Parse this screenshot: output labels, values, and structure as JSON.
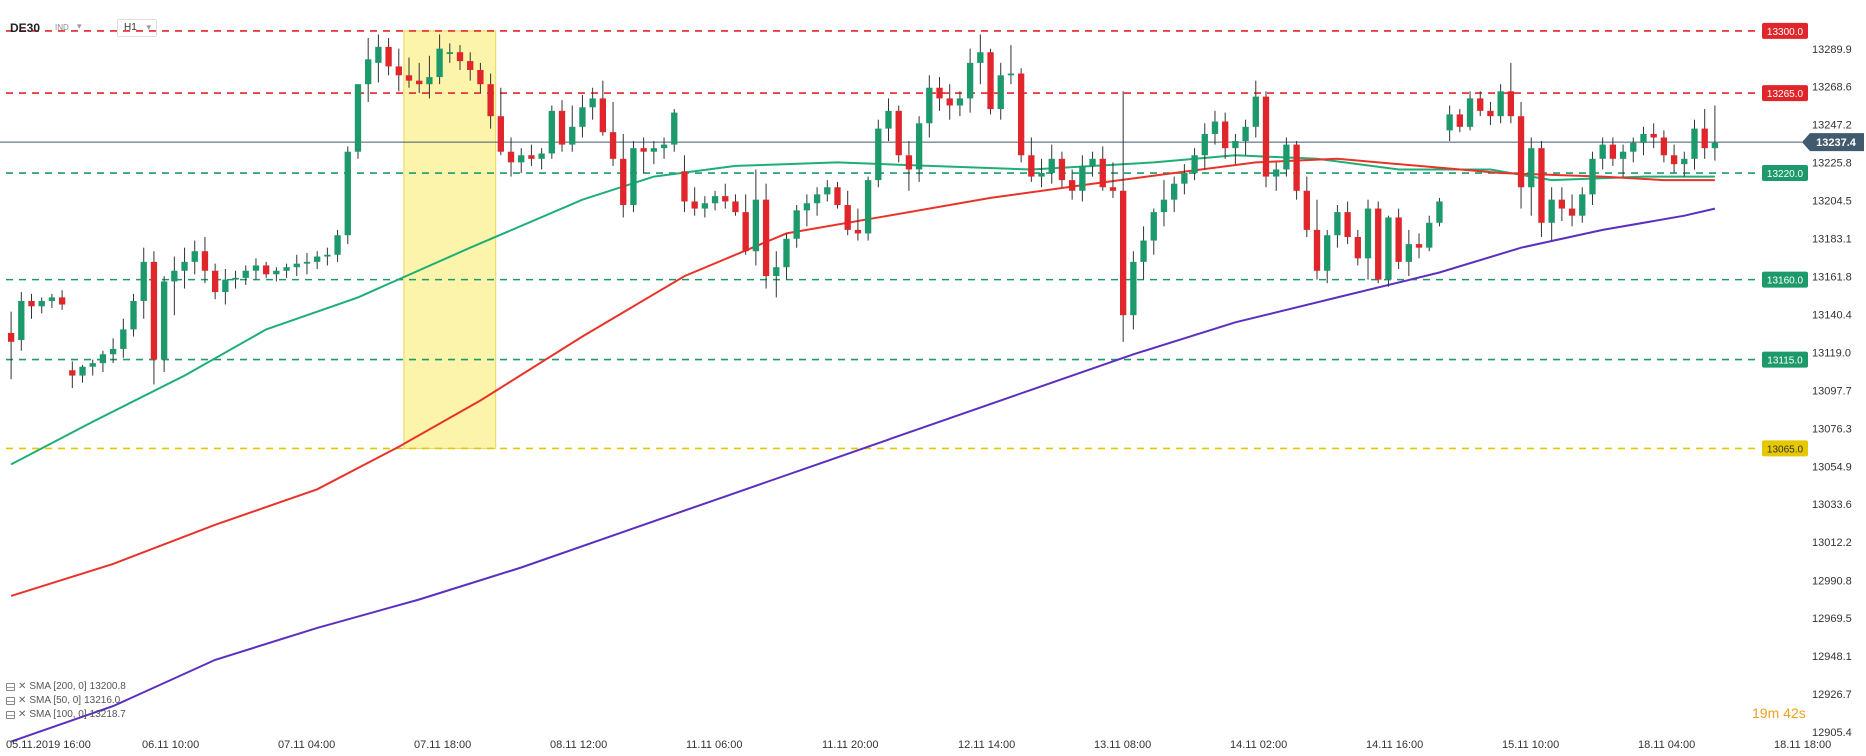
{
  "header": {
    "symbol": "DE30",
    "market": "IND",
    "timeframe": "H1"
  },
  "timer": "19m 42s",
  "indicators": [
    {
      "label": "SMA [200, 0]",
      "value": "13200.8",
      "color": "#5b2fbf"
    },
    {
      "label": "SMA [50, 0]",
      "value": "13216.0",
      "color": "#e8332a"
    },
    {
      "label": "SMA [100, 0]",
      "value": "13218.7",
      "color": "#1fae76"
    }
  ],
  "colors": {
    "bull": "#1c9a6c",
    "bear": "#e0262b",
    "grid": "#eeeeee",
    "axis_text": "#333333",
    "highlight": "#fbf29b"
  },
  "chart_data": {
    "type": "candlestick",
    "instrument": "DE30",
    "timeframe": "H1",
    "ylim": [
      12905.4,
      13300.5
    ],
    "yticks": [
      13289.9,
      13268.6,
      13247.2,
      13225.8,
      13204.5,
      13183.1,
      13161.8,
      13140.4,
      13119.0,
      13097.7,
      13076.3,
      13054.9,
      13033.6,
      13012.2,
      12990.8,
      12969.5,
      12948.1,
      12926.7,
      12905.4
    ],
    "xlabels": [
      "05.11.2019  16:00",
      "06.11  10:00",
      "07.11  04:00",
      "07.11  18:00",
      "08.11  12:00",
      "11.11  06:00",
      "11.11  20:00",
      "12.11  14:00",
      "13.11  08:00",
      "14.11  02:00",
      "14.11  16:00",
      "15.11  10:00",
      "18.11  04:00",
      "18.11  18:00"
    ],
    "current_price": {
      "label": "13237.4",
      "value": 13237.4
    },
    "levels": [
      {
        "value": 13300.0,
        "label": "13300.0",
        "color": "#e0262b"
      },
      {
        "value": 13265.0,
        "label": "13265.0",
        "color": "#e0262b"
      },
      {
        "value": 13220.0,
        "label": "13220.0",
        "color": "#1c9a6c"
      },
      {
        "value": 13160.0,
        "label": "13160.0",
        "color": "#1c9a6c"
      },
      {
        "value": 13115.0,
        "label": "13115.0",
        "color": "#1c9a6c"
      },
      {
        "value": 13065.0,
        "label": "13065.0",
        "color": "#e6c800"
      }
    ],
    "highlight_zone": {
      "from_bar": 39,
      "to_bar": 47,
      "high": 13300.0,
      "low": 13065.0
    },
    "candles": [
      [
        13130,
        13142,
        13104,
        13125
      ],
      [
        13126,
        13153,
        13120,
        13148
      ],
      [
        13148,
        13152,
        13138,
        13145
      ],
      [
        13145,
        13150,
        13141,
        13148
      ],
      [
        13148,
        13152,
        13144,
        13150
      ],
      [
        13150,
        13154,
        13143,
        13146
      ],
      [
        13109,
        13114,
        13099,
        13106
      ],
      [
        13106,
        13112,
        13102,
        13111
      ],
      [
        13111,
        13115,
        13106,
        13113
      ],
      [
        13113,
        13120,
        13108,
        13118
      ],
      [
        13118,
        13127,
        13113,
        13121
      ],
      [
        13121,
        13138,
        13116,
        13132
      ],
      [
        13132,
        13152,
        13128,
        13148
      ],
      [
        13148,
        13178,
        13138,
        13170
      ],
      [
        13170,
        13176,
        13101,
        13115
      ],
      [
        13115,
        13162,
        13108,
        13159
      ],
      [
        13159,
        13173,
        13140,
        13165
      ],
      [
        13165,
        13178,
        13155,
        13170
      ],
      [
        13170,
        13182,
        13163,
        13176
      ],
      [
        13176,
        13184,
        13158,
        13165
      ],
      [
        13165,
        13169,
        13149,
        13153
      ],
      [
        13153,
        13166,
        13146,
        13160
      ],
      [
        13160,
        13165,
        13155,
        13161
      ],
      [
        13161,
        13168,
        13157,
        13165
      ],
      [
        13165,
        13172,
        13160,
        13168
      ],
      [
        13168,
        13170,
        13161,
        13163
      ],
      [
        13163,
        13167,
        13159,
        13165
      ],
      [
        13165,
        13169,
        13161,
        13167
      ],
      [
        13167,
        13174,
        13162,
        13169
      ],
      [
        13169,
        13175,
        13163,
        13170
      ],
      [
        13170,
        13176,
        13166,
        13173
      ],
      [
        13173,
        13178,
        13168,
        13174
      ],
      [
        13174,
        13188,
        13170,
        13185
      ],
      [
        13185,
        13235,
        13180,
        13232
      ],
      [
        13232,
        13270,
        13228,
        13270
      ],
      [
        13270,
        13296,
        13260,
        13284
      ],
      [
        13282,
        13298,
        13271,
        13291
      ],
      [
        13291,
        13296,
        13275,
        13280
      ],
      [
        13280,
        13290,
        13266,
        13275
      ],
      [
        13275,
        13285,
        13268,
        13272
      ],
      [
        13272,
        13282,
        13265,
        13270
      ],
      [
        13270,
        13286,
        13262,
        13274
      ],
      [
        13274,
        13298,
        13270,
        13290
      ],
      [
        13287,
        13293,
        13282,
        13288
      ],
      [
        13288,
        13292,
        13278,
        13283
      ],
      [
        13283,
        13288,
        13272,
        13278
      ],
      [
        13278,
        13282,
        13265,
        13270
      ],
      [
        13270,
        13276,
        13245,
        13252
      ],
      [
        13252,
        13268,
        13230,
        13232
      ],
      [
        13232,
        13240,
        13218,
        13226
      ],
      [
        13226,
        13234,
        13220,
        13230
      ],
      [
        13230,
        13236,
        13224,
        13228
      ],
      [
        13228,
        13234,
        13222,
        13231
      ],
      [
        13231,
        13258,
        13228,
        13255
      ],
      [
        13255,
        13261,
        13232,
        13236
      ],
      [
        13236,
        13258,
        13232,
        13246
      ],
      [
        13246,
        13264,
        13240,
        13257
      ],
      [
        13257,
        13268,
        13250,
        13262
      ],
      [
        13262,
        13272,
        13241,
        13243
      ],
      [
        13243,
        13260,
        13224,
        13228
      ],
      [
        13228,
        13242,
        13195,
        13202
      ],
      [
        13202,
        13238,
        13198,
        13234
      ],
      [
        13234,
        13240,
        13220,
        13232
      ],
      [
        13232,
        13238,
        13225,
        13234
      ],
      [
        13234,
        13240,
        13228,
        13236
      ],
      [
        13236,
        13256,
        13232,
        13254
      ],
      [
        13221,
        13230,
        13198,
        13204
      ],
      [
        13204,
        13212,
        13196,
        13200
      ],
      [
        13200,
        13207,
        13195,
        13203
      ],
      [
        13203,
        13210,
        13199,
        13207
      ],
      [
        13207,
        13214,
        13200,
        13204
      ],
      [
        13204,
        13208,
        13196,
        13198
      ],
      [
        13198,
        13208,
        13174,
        13176
      ],
      [
        13176,
        13222,
        13168,
        13205
      ],
      [
        13205,
        13214,
        13155,
        13162
      ],
      [
        13162,
        13176,
        13150,
        13167
      ],
      [
        13167,
        13186,
        13160,
        13183
      ],
      [
        13183,
        13202,
        13178,
        13199
      ],
      [
        13199,
        13208,
        13190,
        13203
      ],
      [
        13203,
        13212,
        13196,
        13208
      ],
      [
        13208,
        13216,
        13204,
        13212
      ],
      [
        13212,
        13215,
        13200,
        13202
      ],
      [
        13202,
        13210,
        13185,
        13188
      ],
      [
        13188,
        13200,
        13182,
        13186
      ],
      [
        13186,
        13218,
        13182,
        13216
      ],
      [
        13216,
        13250,
        13212,
        13245
      ],
      [
        13245,
        13262,
        13238,
        13255
      ],
      [
        13255,
        13258,
        13226,
        13230
      ],
      [
        13230,
        13238,
        13210,
        13222
      ],
      [
        13222,
        13252,
        13215,
        13248
      ],
      [
        13248,
        13275,
        13240,
        13268
      ],
      [
        13268,
        13274,
        13255,
        13262
      ],
      [
        13262,
        13270,
        13250,
        13258
      ],
      [
        13258,
        13266,
        13252,
        13262
      ],
      [
        13262,
        13290,
        13254,
        13282
      ],
      [
        13282,
        13298,
        13270,
        13288
      ],
      [
        13288,
        13290,
        13253,
        13256
      ],
      [
        13256,
        13282,
        13250,
        13275
      ],
      [
        13275,
        13292,
        13270,
        13276
      ],
      [
        13276,
        13279,
        13226,
        13230
      ],
      [
        13230,
        13240,
        13215,
        13218
      ],
      [
        13218,
        13228,
        13212,
        13220
      ],
      [
        13220,
        13236,
        13214,
        13228
      ],
      [
        13228,
        13232,
        13212,
        13216
      ],
      [
        13216,
        13222,
        13205,
        13210
      ],
      [
        13210,
        13230,
        13204,
        13224
      ],
      [
        13224,
        13232,
        13218,
        13228
      ],
      [
        13228,
        13235,
        13210,
        13212
      ],
      [
        13212,
        13226,
        13206,
        13210
      ],
      [
        13210,
        13266,
        13125,
        13140
      ],
      [
        13140,
        13176,
        13132,
        13170
      ],
      [
        13170,
        13190,
        13160,
        13182
      ],
      [
        13182,
        13200,
        13174,
        13198
      ],
      [
        13198,
        13216,
        13190,
        13205
      ],
      [
        13205,
        13218,
        13198,
        13214
      ],
      [
        13214,
        13225,
        13208,
        13220
      ],
      [
        13220,
        13234,
        13216,
        13230
      ],
      [
        13230,
        13248,
        13222,
        13242
      ],
      [
        13242,
        13255,
        13236,
        13249
      ],
      [
        13249,
        13254,
        13228,
        13234
      ],
      [
        13234,
        13242,
        13225,
        13238
      ],
      [
        13238,
        13250,
        13230,
        13246
      ],
      [
        13246,
        13272,
        13240,
        13263
      ],
      [
        13263,
        13266,
        13212,
        13218
      ],
      [
        13218,
        13226,
        13210,
        13222
      ],
      [
        13222,
        13240,
        13218,
        13236
      ],
      [
        13236,
        13238,
        13205,
        13210
      ],
      [
        13210,
        13218,
        13184,
        13188
      ],
      [
        13188,
        13205,
        13160,
        13165
      ],
      [
        13165,
        13188,
        13158,
        13185
      ],
      [
        13185,
        13202,
        13178,
        13198
      ],
      [
        13198,
        13204,
        13180,
        13184
      ],
      [
        13184,
        13188,
        13168,
        13172
      ],
      [
        13172,
        13205,
        13160,
        13200
      ],
      [
        13200,
        13204,
        13158,
        13160
      ],
      [
        13160,
        13196,
        13156,
        13195
      ],
      [
        13195,
        13200,
        13166,
        13170
      ],
      [
        13170,
        13188,
        13162,
        13180
      ],
      [
        13180,
        13186,
        13172,
        13178
      ],
      [
        13178,
        13196,
        13176,
        13192
      ],
      [
        13192,
        13206,
        13190,
        13204
      ],
      [
        13244,
        13258,
        13238,
        13253
      ],
      [
        13253,
        13256,
        13243,
        13246
      ],
      [
        13246,
        13266,
        13244,
        13262
      ],
      [
        13262,
        13266,
        13252,
        13255
      ],
      [
        13255,
        13260,
        13247,
        13252
      ],
      [
        13252,
        13270,
        13248,
        13266
      ],
      [
        13266,
        13282,
        13248,
        13252
      ],
      [
        13252,
        13260,
        13200,
        13212
      ],
      [
        13212,
        13240,
        13196,
        13234
      ],
      [
        13234,
        13238,
        13184,
        13192
      ],
      [
        13192,
        13212,
        13182,
        13205
      ],
      [
        13205,
        13212,
        13193,
        13200
      ],
      [
        13200,
        13208,
        13190,
        13196
      ],
      [
        13196,
        13212,
        13192,
        13208
      ],
      [
        13208,
        13232,
        13202,
        13228
      ],
      [
        13228,
        13240,
        13222,
        13236
      ],
      [
        13236,
        13240,
        13224,
        13228
      ],
      [
        13228,
        13236,
        13218,
        13232
      ],
      [
        13232,
        13240,
        13226,
        13237
      ],
      [
        13237,
        13246,
        13230,
        13242
      ],
      [
        13242,
        13248,
        13234,
        13240
      ],
      [
        13240,
        13244,
        13226,
        13230
      ],
      [
        13230,
        13236,
        13220,
        13225
      ],
      [
        13225,
        13232,
        13218,
        13228
      ],
      [
        13228,
        13250,
        13222,
        13245
      ],
      [
        13245,
        13256,
        13228,
        13234
      ],
      [
        13234,
        13258,
        13227,
        13237
      ]
    ],
    "sma": [
      {
        "name": "SMA [100, 0]",
        "color": "#1fae76",
        "points": [
          [
            0,
            13056
          ],
          [
            8,
            13080
          ],
          [
            17,
            13106
          ],
          [
            25,
            13132
          ],
          [
            34,
            13150
          ],
          [
            45,
            13178
          ],
          [
            56,
            13205
          ],
          [
            63,
            13218
          ],
          [
            71,
            13224
          ],
          [
            81,
            13226
          ],
          [
            90,
            13224
          ],
          [
            100,
            13222
          ],
          [
            112,
            13226
          ],
          [
            120,
            13230
          ],
          [
            128,
            13228
          ],
          [
            136,
            13222
          ],
          [
            145,
            13222
          ],
          [
            151,
            13216
          ],
          [
            160,
            13218
          ],
          [
            170,
            13218
          ]
        ]
      },
      {
        "name": "SMA [50, 0]",
        "color": "#e8332a",
        "points": [
          [
            0,
            12982
          ],
          [
            10,
            13000
          ],
          [
            20,
            13022
          ],
          [
            30,
            13042
          ],
          [
            38,
            13066
          ],
          [
            46,
            13092
          ],
          [
            56,
            13128
          ],
          [
            66,
            13162
          ],
          [
            76,
            13186
          ],
          [
            86,
            13196
          ],
          [
            96,
            13206
          ],
          [
            106,
            13214
          ],
          [
            114,
            13220
          ],
          [
            122,
            13226
          ],
          [
            130,
            13228
          ],
          [
            138,
            13224
          ],
          [
            146,
            13220
          ],
          [
            156,
            13218
          ],
          [
            162,
            13216
          ],
          [
            170,
            13216
          ]
        ]
      },
      {
        "name": "SMA [200, 0]",
        "color": "#5b2fbf",
        "points": [
          [
            0,
            12900
          ],
          [
            10,
            12920
          ],
          [
            20,
            12946
          ],
          [
            30,
            12964
          ],
          [
            40,
            12980
          ],
          [
            50,
            12998
          ],
          [
            60,
            13018
          ],
          [
            70,
            13038
          ],
          [
            80,
            13058
          ],
          [
            90,
            13078
          ],
          [
            100,
            13098
          ],
          [
            110,
            13118
          ],
          [
            120,
            13136
          ],
          [
            130,
            13150
          ],
          [
            140,
            13164
          ],
          [
            148,
            13178
          ],
          [
            156,
            13188
          ],
          [
            164,
            13196
          ],
          [
            170,
            13200
          ]
        ]
      }
    ]
  }
}
